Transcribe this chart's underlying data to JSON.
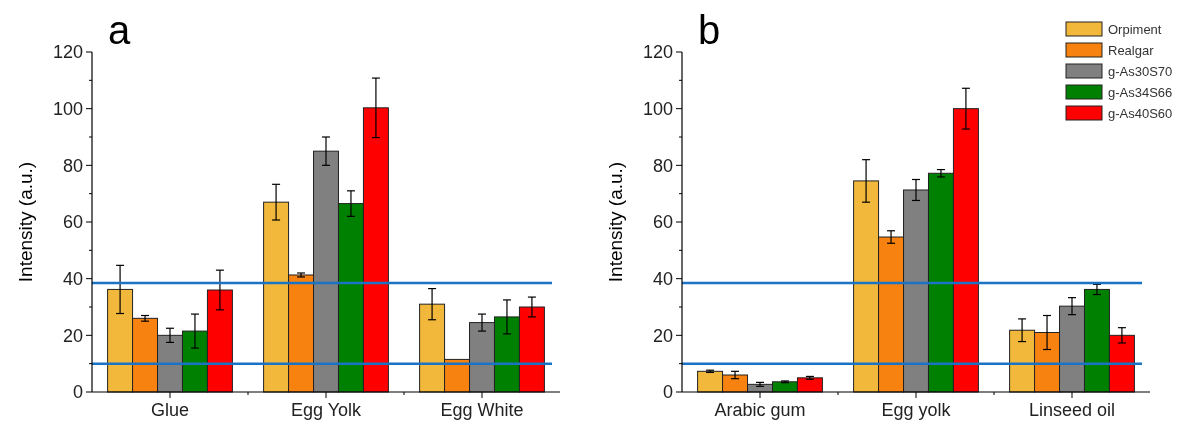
{
  "chart_data": [
    {
      "type": "bar",
      "title": "a",
      "ylabel": "Intensity (a.u.)",
      "categories": [
        "Glue",
        "Egg Yolk",
        "Egg White"
      ],
      "series": [
        {
          "color": "#f2b83c",
          "values": [
            36.2,
            67,
            31
          ],
          "errors": [
            8.5,
            6.3,
            5.5
          ]
        },
        {
          "color": "#f7820f",
          "values": [
            26,
            41.3,
            11.5
          ],
          "errors": [
            1,
            0.7,
            null
          ]
        },
        {
          "color": "#808080",
          "values": [
            20,
            85,
            24.5
          ],
          "errors": [
            2.5,
            5,
            3
          ]
        },
        {
          "color": "#008000",
          "values": [
            21.5,
            66.5,
            26.5
          ],
          "errors": [
            6,
            4.5,
            6
          ]
        },
        {
          "color": "#ff0000",
          "values": [
            36,
            100.3,
            30
          ],
          "errors": [
            7,
            10.5,
            3.5
          ]
        }
      ],
      "ylim": [
        0,
        120
      ],
      "yticks": [
        0,
        {
          "value": 10,
          "label": null
        },
        20,
        {
          "value": 30,
          "label": null
        },
        40,
        {
          "value": 50,
          "label": null
        },
        60,
        {
          "value": 70,
          "label": null
        },
        80,
        {
          "value": 90,
          "label": null
        },
        100,
        {
          "value": 110,
          "label": null
        },
        120
      ],
      "ref_lines": [
        {
          "axis": "y",
          "value": 38.5,
          "color": "#1a73c4"
        },
        {
          "axis": "y",
          "value": 10,
          "color": "#1a73c4"
        }
      ],
      "legend": false,
      "grid": false
    },
    {
      "type": "bar",
      "title": "b",
      "ylabel": "Intensity (a.u.)",
      "categories": [
        "Arabic gum",
        "Egg yolk",
        "Linseed oil"
      ],
      "series": [
        {
          "name": "Orpiment",
          "color": "#f2b83c",
          "values": [
            7.3,
            74.5,
            21.8
          ],
          "errors": [
            0.4,
            7.5,
            4
          ]
        },
        {
          "name": "Realgar",
          "color": "#f7820f",
          "values": [
            6,
            54.7,
            21
          ],
          "errors": [
            1.3,
            2.2,
            6
          ]
        },
        {
          "name": "g-As30S70",
          "color": "#808080",
          "values": [
            2.7,
            71.3,
            30.3
          ],
          "errors": [
            0.7,
            3.7,
            3
          ]
        },
        {
          "name": "g-As34S66",
          "color": "#008000",
          "values": [
            3.6,
            77.2,
            36.2
          ],
          "errors": [
            0.3,
            1.3,
            1.8
          ]
        },
        {
          "name": "g-As40S60",
          "color": "#ff0000",
          "values": [
            5,
            100,
            20
          ],
          "errors": [
            0.5,
            7.2,
            2.7
          ]
        }
      ],
      "ylim": [
        0,
        120
      ],
      "yticks": [
        0,
        {
          "value": 10,
          "label": null
        },
        20,
        {
          "value": 30,
          "label": null
        },
        40,
        {
          "value": 50,
          "label": null
        },
        60,
        {
          "value": 70,
          "label": null
        },
        80,
        {
          "value": 90,
          "label": null
        },
        100,
        {
          "value": 110,
          "label": null
        },
        120
      ],
      "ref_lines": [
        {
          "axis": "y",
          "value": 38.5,
          "color": "#1a73c4"
        },
        {
          "axis": "y",
          "value": 10,
          "color": "#1a73c4"
        }
      ],
      "legend": "top right",
      "grid": false
    }
  ]
}
